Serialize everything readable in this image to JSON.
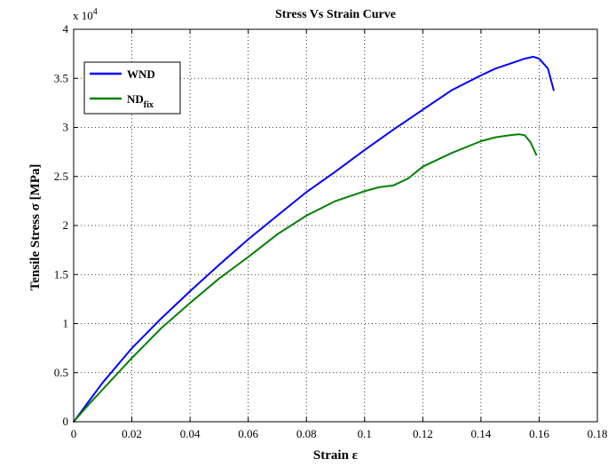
{
  "chart_data": {
    "type": "line",
    "title": "Stress Vs Strain Curve",
    "xlabel": "Strain ε",
    "ylabel": "Tensile Stress σ [MPa]",
    "y_multiplier": "x 10",
    "y_multiplier_exp": "4",
    "xlim": [
      0,
      0.18
    ],
    "ylim": [
      0,
      4
    ],
    "xticks": [
      0,
      0.02,
      0.04,
      0.06,
      0.08,
      0.1,
      0.12,
      0.14,
      0.16,
      0.18
    ],
    "xtick_labels": [
      "0",
      "0.02",
      "0.04",
      "0.06",
      "0.08",
      "0.1",
      "0.12",
      "0.14",
      "0.16",
      "0.18"
    ],
    "yticks": [
      0,
      0.5,
      1,
      1.5,
      2,
      2.5,
      3,
      3.5,
      4
    ],
    "ytick_labels": [
      "0",
      "0.5",
      "1",
      "1.5",
      "2",
      "2.5",
      "3",
      "3.5",
      "4"
    ],
    "grid": true,
    "legend_position": "top-left",
    "series": [
      {
        "name": "WND",
        "color": "#0000ff",
        "x": [
          0,
          0.002,
          0.005,
          0.01,
          0.02,
          0.03,
          0.04,
          0.05,
          0.06,
          0.07,
          0.08,
          0.09,
          0.1,
          0.11,
          0.12,
          0.13,
          0.14,
          0.145,
          0.15,
          0.155,
          0.158,
          0.16,
          0.163,
          0.165
        ],
        "y": [
          0,
          0.08,
          0.2,
          0.4,
          0.75,
          1.05,
          1.33,
          1.6,
          1.86,
          2.1,
          2.34,
          2.55,
          2.77,
          2.98,
          3.18,
          3.38,
          3.53,
          3.6,
          3.65,
          3.7,
          3.72,
          3.7,
          3.6,
          3.38
        ]
      },
      {
        "name": "ND",
        "name_sub": "fix",
        "color": "#008000",
        "x": [
          0,
          0.002,
          0.005,
          0.01,
          0.02,
          0.03,
          0.04,
          0.05,
          0.06,
          0.07,
          0.08,
          0.09,
          0.1,
          0.105,
          0.11,
          0.115,
          0.12,
          0.13,
          0.14,
          0.145,
          0.15,
          0.153,
          0.155,
          0.157,
          0.159
        ],
        "y": [
          0,
          0.07,
          0.17,
          0.33,
          0.65,
          0.95,
          1.21,
          1.46,
          1.68,
          1.91,
          2.1,
          2.25,
          2.35,
          2.39,
          2.41,
          2.48,
          2.6,
          2.74,
          2.86,
          2.9,
          2.92,
          2.93,
          2.92,
          2.85,
          2.72
        ]
      }
    ]
  }
}
